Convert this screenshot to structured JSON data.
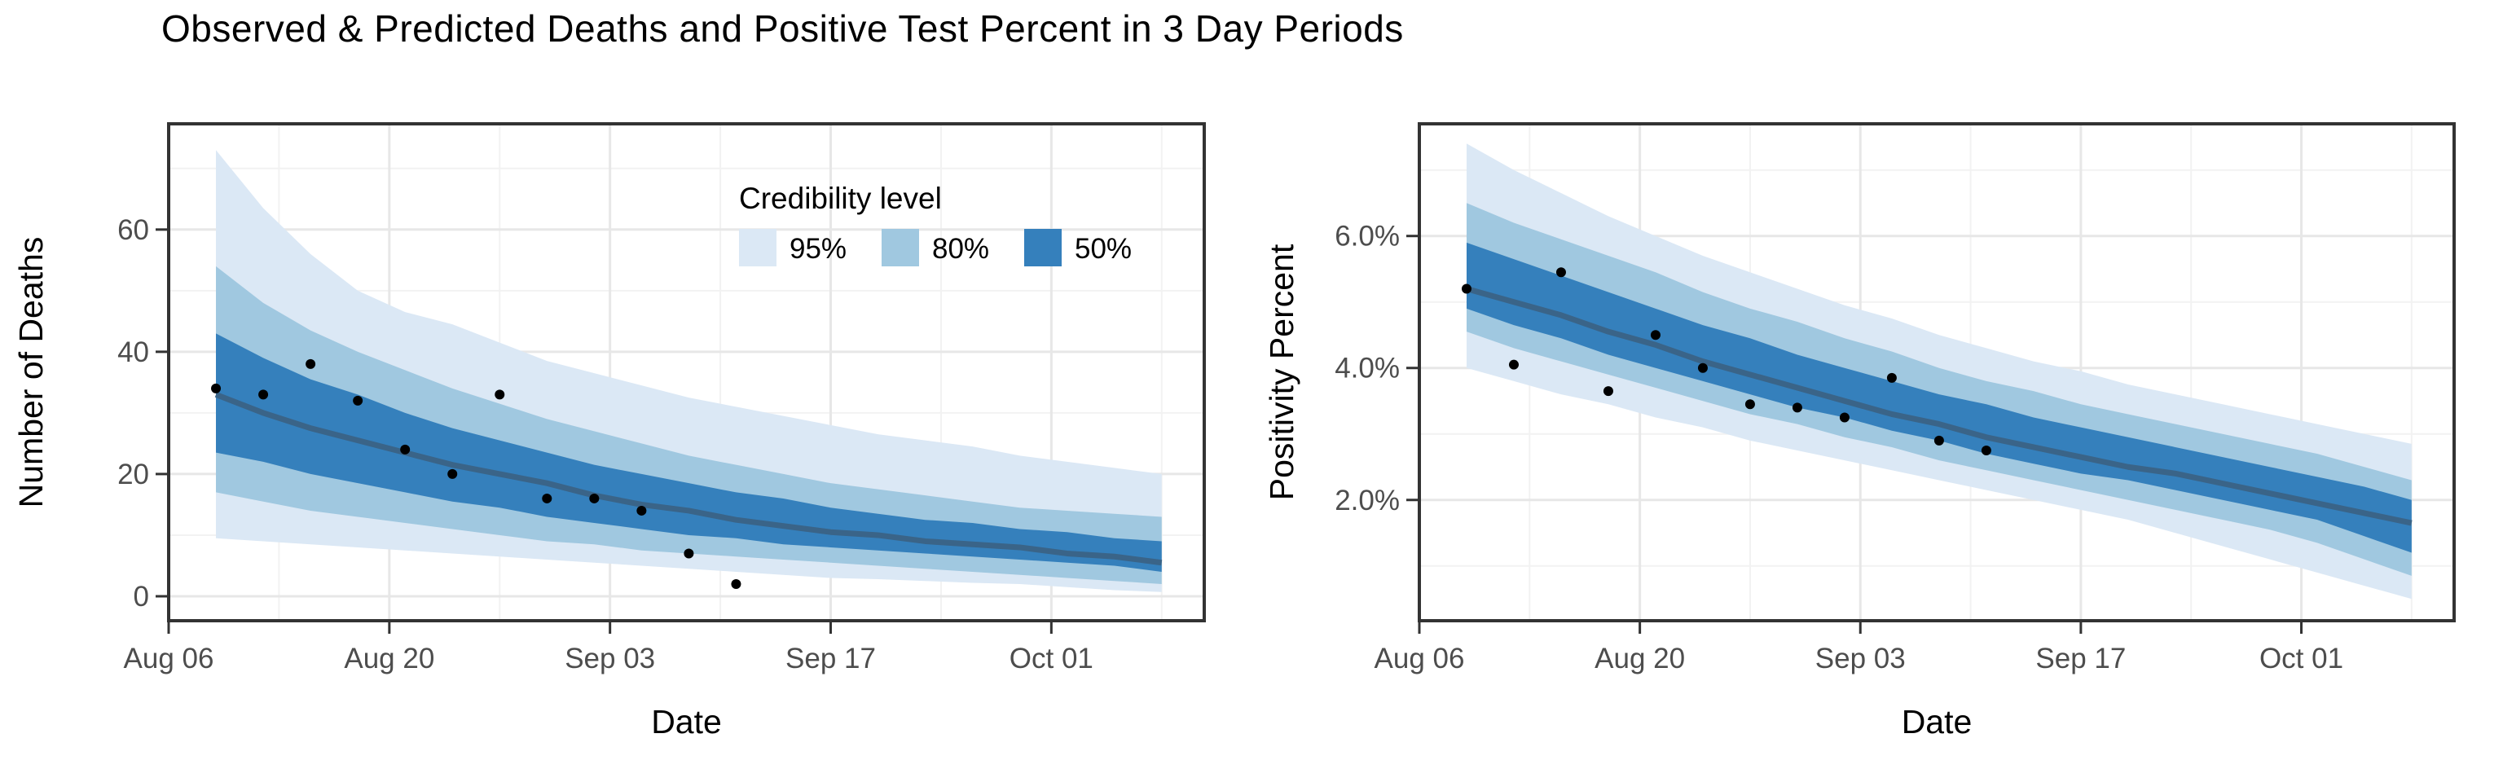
{
  "title": "Observed & Predicted Deaths and Positive Test Percent in 3 Day Periods",
  "legend": {
    "title": "Credibility level",
    "items": [
      {
        "label": "95%",
        "color": "#DBE8F5"
      },
      {
        "label": "80%",
        "color": "#A0C8E0"
      },
      {
        "label": "50%",
        "color": "#3580BC"
      }
    ]
  },
  "colors": {
    "band_95": "#DBE8F5",
    "band_80": "#A0C8E0",
    "band_50": "#3580BC",
    "median_line": "#3A6488",
    "observed_point": "#000000",
    "grid_major": "#E7E7E7",
    "grid_minor": "#F2F2F2",
    "panel_border": "#333333",
    "tick_mark": "#333333",
    "tick_text": "#4D4D4D",
    "axis_title_text": "#000000"
  },
  "chart_data": [
    {
      "type": "area",
      "panel": "deaths",
      "xlabel": "Date",
      "ylabel": "Number of Deaths",
      "x_unit_days_since": "Aug 06",
      "xlim": [
        0,
        65.7
      ],
      "ylim": [
        -4,
        77.3
      ],
      "grid": true,
      "x_tick_days": [
        0,
        14,
        28,
        42,
        56
      ],
      "x_tick_labels": [
        "Aug 06",
        "Aug 20",
        "Sep 03",
        "Sep 17",
        "Oct 01"
      ],
      "x_minor_days": [
        7,
        21,
        35,
        49,
        63
      ],
      "y_ticks": [
        0,
        20,
        40,
        60
      ],
      "y_tick_labels": [
        "0",
        "20",
        "40",
        "60"
      ],
      "y_minor": [
        10,
        30,
        50,
        70
      ],
      "pred_days": [
        3,
        6,
        9,
        12,
        15,
        18,
        21,
        24,
        27,
        30,
        33,
        36,
        39,
        42,
        45,
        48,
        51,
        54,
        57,
        60,
        63
      ],
      "pred_dates": [
        "Aug 09",
        "Aug 12",
        "Aug 15",
        "Aug 18",
        "Aug 21",
        "Aug 24",
        "Aug 27",
        "Aug 30",
        "Sep 02",
        "Sep 05",
        "Sep 08",
        "Sep 11",
        "Sep 14",
        "Sep 17",
        "Sep 20",
        "Sep 23",
        "Sep 26",
        "Sep 29",
        "Oct 02",
        "Oct 05",
        "Oct 08"
      ],
      "median": [
        33,
        30,
        27.5,
        25.5,
        23.5,
        21.5,
        20,
        18.5,
        16.5,
        15,
        14,
        12.5,
        11.5,
        10.5,
        10,
        9,
        8.5,
        8,
        7,
        6.5,
        5.5
      ],
      "ribbons": {
        "p95": {
          "upper": [
            73,
            63.5,
            56,
            50,
            46.5,
            44.5,
            41.5,
            38.5,
            36.5,
            34.5,
            32.5,
            31,
            29.5,
            28,
            26.5,
            25.5,
            24.5,
            23,
            22,
            21,
            20
          ],
          "lower": [
            9.5,
            9,
            8.5,
            8,
            7.5,
            7,
            6.5,
            6,
            5.5,
            5,
            4.5,
            4,
            3.5,
            3,
            2.8,
            2.5,
            2.2,
            2,
            1.5,
            1,
            0.7
          ]
        },
        "p80": {
          "upper": [
            54,
            48,
            43.5,
            40,
            37,
            34,
            31.5,
            29,
            27,
            25,
            23,
            21.5,
            20,
            18.5,
            17.5,
            16.5,
            15.5,
            14.5,
            14,
            13.5,
            13
          ],
          "lower": [
            17,
            15.5,
            14,
            13,
            12,
            11,
            10,
            9,
            8.5,
            7.5,
            7,
            6.5,
            6,
            5.5,
            5,
            4.5,
            4,
            3.5,
            3,
            2.5,
            2
          ]
        },
        "p50": {
          "upper": [
            43,
            39,
            35.5,
            33,
            30,
            27.5,
            25.5,
            23.5,
            21.5,
            20,
            18.5,
            17,
            16,
            14.5,
            13.5,
            12.5,
            12,
            11,
            10.5,
            9.5,
            9
          ],
          "lower": [
            23.5,
            22,
            20,
            18.5,
            17,
            15.5,
            14.5,
            13,
            12,
            11,
            10,
            9.5,
            8.5,
            8,
            7.5,
            7,
            6.5,
            6,
            5.5,
            5,
            4
          ]
        }
      },
      "observed": {
        "days": [
          3,
          6,
          9,
          12,
          15,
          18,
          21,
          24,
          27,
          30,
          33,
          36
        ],
        "dates": [
          "Aug 09",
          "Aug 12",
          "Aug 15",
          "Aug 18",
          "Aug 21",
          "Aug 24",
          "Aug 27",
          "Aug 30",
          "Sep 02",
          "Sep 05",
          "Sep 08",
          "Sep 11"
        ],
        "values": [
          34,
          33,
          38,
          32,
          24,
          20,
          33,
          16,
          16,
          14,
          7,
          2
        ]
      }
    },
    {
      "type": "area",
      "panel": "positivity",
      "xlabel": "Date",
      "ylabel": "Positivity Percent",
      "x_unit_days_since": "Aug 06",
      "xlim": [
        0,
        65.7
      ],
      "ylim": [
        0.17,
        7.7
      ],
      "grid": true,
      "x_tick_days": [
        0,
        14,
        28,
        42,
        56
      ],
      "x_tick_labels": [
        "Aug 06",
        "Aug 20",
        "Sep 03",
        "Sep 17",
        "Oct 01"
      ],
      "x_minor_days": [
        7,
        21,
        35,
        49,
        63
      ],
      "y_ticks": [
        2,
        4,
        6
      ],
      "y_tick_labels": [
        "2.0%",
        "4.0%",
        "6.0%"
      ],
      "y_minor": [
        1,
        3,
        5,
        7
      ],
      "pred_days": [
        3,
        6,
        9,
        12,
        15,
        18,
        21,
        24,
        27,
        30,
        33,
        36,
        39,
        42,
        45,
        48,
        51,
        54,
        57,
        60,
        63
      ],
      "pred_dates": [
        "Aug 09",
        "Aug 12",
        "Aug 15",
        "Aug 18",
        "Aug 21",
        "Aug 24",
        "Aug 27",
        "Aug 30",
        "Sep 02",
        "Sep 05",
        "Sep 08",
        "Sep 11",
        "Sep 14",
        "Sep 17",
        "Sep 20",
        "Sep 23",
        "Sep 26",
        "Sep 29",
        "Oct 02",
        "Oct 05",
        "Oct 08"
      ],
      "median": [
        5.2,
        5.0,
        4.8,
        4.55,
        4.35,
        4.1,
        3.9,
        3.7,
        3.5,
        3.3,
        3.15,
        2.95,
        2.8,
        2.65,
        2.5,
        2.4,
        2.25,
        2.1,
        1.95,
        1.8,
        1.65
      ],
      "ribbons": {
        "p95": {
          "upper": [
            7.4,
            7.0,
            6.65,
            6.3,
            6.0,
            5.7,
            5.45,
            5.2,
            4.95,
            4.75,
            4.5,
            4.3,
            4.1,
            3.95,
            3.75,
            3.6,
            3.45,
            3.3,
            3.15,
            3.0,
            2.85
          ],
          "lower": [
            4.0,
            3.8,
            3.6,
            3.45,
            3.25,
            3.1,
            2.9,
            2.75,
            2.6,
            2.45,
            2.3,
            2.15,
            2.0,
            1.85,
            1.7,
            1.5,
            1.3,
            1.1,
            0.9,
            0.7,
            0.5
          ]
        },
        "p80": {
          "upper": [
            6.5,
            6.2,
            5.95,
            5.7,
            5.45,
            5.15,
            4.9,
            4.7,
            4.45,
            4.25,
            4.0,
            3.8,
            3.65,
            3.45,
            3.3,
            3.15,
            3.0,
            2.85,
            2.7,
            2.5,
            2.3
          ],
          "lower": [
            4.55,
            4.3,
            4.1,
            3.9,
            3.7,
            3.5,
            3.3,
            3.15,
            2.95,
            2.8,
            2.6,
            2.45,
            2.3,
            2.15,
            2.0,
            1.85,
            1.7,
            1.55,
            1.35,
            1.1,
            0.85
          ]
        },
        "p50": {
          "upper": [
            5.9,
            5.65,
            5.4,
            5.15,
            4.9,
            4.65,
            4.45,
            4.2,
            4.0,
            3.8,
            3.6,
            3.45,
            3.25,
            3.1,
            2.95,
            2.8,
            2.65,
            2.5,
            2.35,
            2.2,
            2.0
          ],
          "lower": [
            4.9,
            4.65,
            4.45,
            4.2,
            4.0,
            3.8,
            3.6,
            3.4,
            3.25,
            3.05,
            2.9,
            2.7,
            2.55,
            2.4,
            2.3,
            2.15,
            2.0,
            1.85,
            1.7,
            1.45,
            1.2
          ]
        }
      },
      "observed": {
        "days": [
          3,
          6,
          9,
          12,
          15,
          18,
          21,
          24,
          27,
          30,
          33,
          36
        ],
        "dates": [
          "Aug 09",
          "Aug 12",
          "Aug 15",
          "Aug 18",
          "Aug 21",
          "Aug 24",
          "Aug 27",
          "Aug 30",
          "Sep 02",
          "Sep 05",
          "Sep 08",
          "Sep 11"
        ],
        "values": [
          5.2,
          4.05,
          5.45,
          3.65,
          4.5,
          4.0,
          3.45,
          3.4,
          3.25,
          3.85,
          2.9,
          2.75
        ]
      }
    }
  ]
}
